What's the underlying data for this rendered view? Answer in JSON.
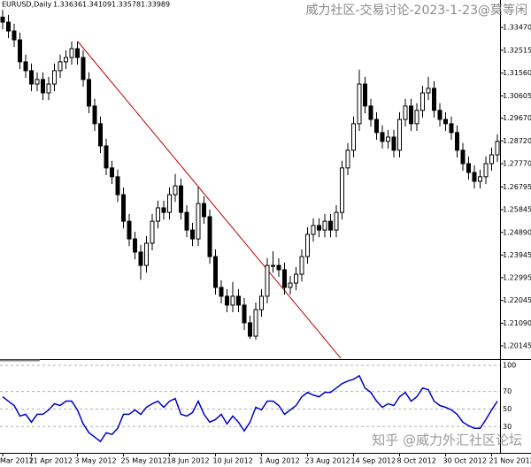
{
  "chart_data": [
    {
      "type": "candlestick",
      "title": "EURUSD,Daily",
      "header_values": [
        1.33636,
        1.34109,
        1.33578,
        1.33989
      ],
      "color": "#000000",
      "categories": [
        "Mar 2012",
        null,
        null,
        null,
        null,
        "11 Apr 2012",
        null,
        null,
        null,
        null,
        null,
        null,
        null,
        "3 May 2012",
        null,
        null,
        null,
        null,
        null,
        null,
        null,
        "25 May 2012",
        null,
        null,
        null,
        null,
        null,
        null,
        null,
        "18 Jun 2012",
        null,
        null,
        null,
        null,
        null,
        null,
        null,
        "10 Jul 2012",
        null,
        null,
        null,
        null,
        null,
        null,
        null,
        "1 Aug 2012",
        null,
        null,
        null,
        null,
        null,
        null,
        null,
        "23 Aug 2012",
        null,
        null,
        null,
        null,
        null,
        null,
        null,
        "14 Sep 2012",
        null,
        null,
        null,
        null,
        null,
        null,
        null,
        "8 Oct 2012",
        null,
        null,
        null,
        null,
        null,
        null,
        null,
        "30 Oct 2012",
        null,
        null,
        null,
        null,
        null,
        null,
        null,
        "21 Nov 2012",
        null
      ],
      "open": [
        1.339,
        1.3369,
        1.3332,
        1.3295,
        1.3203,
        1.3166,
        1.311,
        1.3129,
        1.3073,
        1.311,
        1.3166,
        1.3203,
        1.3221,
        1.3258,
        1.3221,
        1.3129,
        1.3018,
        1.2944,
        1.2851,
        1.2759,
        1.2722,
        1.2647,
        1.2536,
        1.2462,
        1.2407,
        1.2351,
        1.2444,
        1.2536,
        1.2592,
        1.2573,
        1.2647,
        1.2684,
        1.2573,
        1.2499,
        1.2462,
        1.261,
        1.2555,
        1.2388,
        1.2259,
        1.2222,
        1.2185,
        1.2222,
        1.2185,
        1.2111,
        1.2055,
        1.2166,
        1.2222,
        1.2351,
        1.2351,
        1.2333,
        1.2259,
        1.2277,
        1.2314,
        1.2388,
        1.2481,
        1.2518,
        1.2499,
        1.2536,
        1.2499,
        1.2573,
        1.2759,
        1.2833,
        1.2944,
        1.311,
        1.3018,
        1.2962,
        1.2907,
        1.287,
        1.2888,
        1.2833,
        1.2962,
        1.3018,
        1.2944,
        1.3,
        1.3073,
        1.3092,
        1.3,
        1.2962,
        1.2944,
        1.2907,
        1.2833,
        1.2777,
        1.274,
        1.2703,
        1.2722,
        1.2777,
        1.2814
      ],
      "high": [
        1.342,
        1.3399,
        1.3362,
        1.3325,
        1.3233,
        1.3196,
        1.3159,
        1.3159,
        1.314,
        1.3196,
        1.3233,
        1.3251,
        1.3288,
        1.3288,
        1.3251,
        1.3159,
        1.3048,
        1.2974,
        1.2881,
        1.2789,
        1.2752,
        1.2677,
        1.2566,
        1.2492,
        1.2437,
        1.2474,
        1.2566,
        1.2622,
        1.2622,
        1.2677,
        1.2734,
        1.2714,
        1.2603,
        1.2529,
        1.268,
        1.264,
        1.2585,
        1.2418,
        1.2289,
        1.2252,
        1.2282,
        1.2252,
        1.2215,
        1.2141,
        1.2196,
        1.2252,
        1.2381,
        1.241,
        1.2381,
        1.2363,
        1.2307,
        1.2344,
        1.2418,
        1.2511,
        1.2548,
        1.2548,
        1.2566,
        1.2566,
        1.2603,
        1.2789,
        1.2863,
        1.2974,
        1.317,
        1.314,
        1.3048,
        1.2992,
        1.2937,
        1.2918,
        1.2918,
        1.2992,
        1.3048,
        1.3048,
        1.303,
        1.3103,
        1.314,
        1.3122,
        1.303,
        1.2992,
        1.2974,
        1.2937,
        1.2863,
        1.2807,
        1.277,
        1.2752,
        1.2807,
        1.2844,
        1.29
      ],
      "low": [
        1.3339,
        1.3302,
        1.3265,
        1.3173,
        1.3136,
        1.308,
        1.308,
        1.3043,
        1.3043,
        1.308,
        1.3136,
        1.3173,
        1.3191,
        1.3191,
        1.3099,
        1.2988,
        1.2914,
        1.2821,
        1.2729,
        1.2692,
        1.2617,
        1.2506,
        1.2432,
        1.2377,
        1.2291,
        1.2321,
        1.2414,
        1.2506,
        1.2543,
        1.2543,
        1.2617,
        1.2543,
        1.2469,
        1.2432,
        1.2432,
        1.2525,
        1.2358,
        1.2229,
        1.2192,
        1.2155,
        1.2155,
        1.2155,
        1.2081,
        1.2043,
        1.204,
        1.2136,
        1.2192,
        1.2321,
        1.2303,
        1.2229,
        1.2229,
        1.2247,
        1.2284,
        1.2358,
        1.2451,
        1.2469,
        1.2469,
        1.2469,
        1.2469,
        1.2543,
        1.2729,
        1.2803,
        1.2914,
        1.2988,
        1.2932,
        1.2877,
        1.284,
        1.284,
        1.2803,
        1.2803,
        1.2932,
        1.2914,
        1.2914,
        1.297,
        1.3043,
        1.297,
        1.2932,
        1.2914,
        1.2877,
        1.2803,
        1.2747,
        1.271,
        1.2673,
        1.2673,
        1.2692,
        1.2747,
        1.2784
      ],
      "close": [
        1.3369,
        1.3332,
        1.3295,
        1.3203,
        1.3166,
        1.311,
        1.3129,
        1.3073,
        1.311,
        1.3166,
        1.3203,
        1.3221,
        1.3258,
        1.3221,
        1.3129,
        1.3018,
        1.2944,
        1.2851,
        1.2759,
        1.2722,
        1.2647,
        1.2536,
        1.2462,
        1.2407,
        1.2351,
        1.2444,
        1.2536,
        1.2592,
        1.2573,
        1.2647,
        1.2684,
        1.2573,
        1.2499,
        1.2462,
        1.261,
        1.2555,
        1.2388,
        1.2259,
        1.2222,
        1.2185,
        1.2222,
        1.2185,
        1.2111,
        1.2055,
        1.2166,
        1.2222,
        1.2351,
        1.2351,
        1.2333,
        1.2259,
        1.2277,
        1.2314,
        1.2388,
        1.2481,
        1.2518,
        1.2499,
        1.2536,
        1.2499,
        1.2573,
        1.2759,
        1.2833,
        1.2944,
        1.311,
        1.3018,
        1.2962,
        1.2907,
        1.287,
        1.2888,
        1.2833,
        1.2962,
        1.3018,
        1.2944,
        1.3,
        1.3073,
        1.3092,
        1.3,
        1.2962,
        1.2944,
        1.2907,
        1.2833,
        1.2777,
        1.274,
        1.2703,
        1.2722,
        1.2777,
        1.2814,
        1.287
      ],
      "ylim": [
        1.19627,
        1.34617
      ],
      "yticks": [
        {
          "value": 1.3347,
          "label": "1.33470"
        },
        1.32515,
        {
          "value": 1.3156,
          "label": "1.31560"
        },
        1.30605,
        {
          "value": 1.2967,
          "label": "1.29670"
        },
        {
          "value": 1.2872,
          "label": "1.28720"
        },
        {
          "value": 1.2777,
          "label": "1.27770"
        },
        1.26795,
        1.25845,
        {
          "value": 1.2489,
          "label": "1.24890"
        },
        1.23945,
        1.22995,
        1.22045,
        {
          "value": 1.2109,
          "label": "1.21090"
        },
        1.20145
      ]
    },
    {
      "type": "line",
      "color": "#0000c8",
      "values": [
        64,
        59,
        54,
        42,
        44,
        35,
        44,
        44,
        49,
        56,
        54,
        59,
        59,
        49,
        33,
        23,
        18,
        13,
        23,
        21,
        28,
        44,
        44,
        49,
        44,
        52,
        56,
        59,
        52,
        59,
        62,
        44,
        42,
        46,
        59,
        44,
        35,
        38,
        44,
        33,
        42,
        35,
        25,
        35,
        52,
        49,
        59,
        59,
        54,
        44,
        49,
        54,
        64,
        69,
        66,
        64,
        69,
        69,
        74,
        79,
        82,
        84,
        88,
        74,
        69,
        59,
        52,
        56,
        54,
        64,
        69,
        59,
        64,
        74,
        72,
        59,
        54,
        52,
        49,
        44,
        35,
        31,
        28,
        28,
        38,
        49,
        59
      ],
      "ylim": [
        0,
        105
      ],
      "yticks": [
        100,
        70,
        50,
        30
      ]
    }
  ],
  "watermarks": [
    "威力社区-交易讨论-2023-1-23@莫等闲",
    "知乎 @威力外汇社区论坛"
  ]
}
